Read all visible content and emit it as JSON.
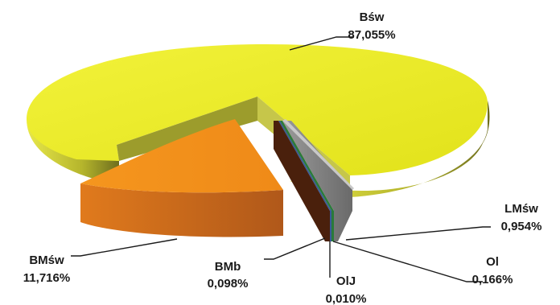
{
  "chart_data": {
    "type": "pie",
    "style": "3d-exploded",
    "slices": [
      {
        "name": "Bśw",
        "percent_label": "87,055%",
        "value": 87.055,
        "color": "#e6e61c"
      },
      {
        "name": "BMśw",
        "percent_label": "11,716%",
        "value": 11.716,
        "color": "#f08a1c"
      },
      {
        "name": "LMśw",
        "percent_label": "0,954%",
        "value": 0.954,
        "color": "#8c8c8c"
      },
      {
        "name": "Ol",
        "percent_label": "0,166%",
        "value": 0.166,
        "color": "#2a7a3a"
      },
      {
        "name": "OlJ",
        "percent_label": "0,010%",
        "value": 0.01,
        "color": "#3a5a9a"
      },
      {
        "name": "BMb",
        "percent_label": "0,098%",
        "value": 0.098,
        "color": "#5a2a10"
      }
    ]
  }
}
